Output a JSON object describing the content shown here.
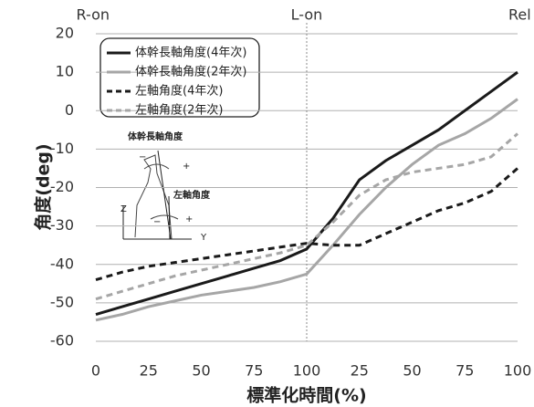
{
  "chart_data": {
    "type": "line",
    "ylabel": "角度(deg)",
    "xlabel": "標準化時間(%)",
    "phases": [
      {
        "value": 0,
        "label": "R-on"
      },
      {
        "value": 100,
        "label": "L-on"
      },
      {
        "value": 200,
        "label": "Rel"
      }
    ],
    "x": [
      0,
      12.5,
      25,
      37.5,
      50,
      62.5,
      75,
      87.5,
      100,
      112.5,
      125,
      137.5,
      150,
      162.5,
      175,
      187.5,
      200
    ],
    "series": [
      {
        "name": "体幹長軸角度(4年次)",
        "color": "#1a1a1a",
        "dash": false,
        "values": [
          -53,
          -51,
          -49,
          -47,
          -45,
          -43,
          -41,
          -39,
          -36,
          -28,
          -18,
          -13,
          -9,
          -5,
          0,
          5,
          10
        ]
      },
      {
        "name": "体幹長軸角度(2年次)",
        "color": "#a6a6a6",
        "dash": false,
        "values": [
          -54.5,
          -53,
          -51,
          -49.5,
          -48,
          -47,
          -46,
          -44.5,
          -42.5,
          -35,
          -27,
          -20,
          -14,
          -9,
          -6,
          -2,
          3
        ]
      },
      {
        "name": "左軸角度(4年次)",
        "color": "#1a1a1a",
        "dash": true,
        "values": [
          -44,
          -42,
          -40.5,
          -39.5,
          -38.5,
          -37.5,
          -36.5,
          -35.5,
          -34.5,
          -35,
          -35,
          -32,
          -29,
          -26,
          -24,
          -21,
          -15
        ]
      },
      {
        "name": "左軸角度(2年次)",
        "color": "#a6a6a6",
        "dash": true,
        "values": [
          -49,
          -47,
          -45,
          -43,
          -41.5,
          -40,
          -38.5,
          -37,
          -35,
          -29,
          -22,
          -18,
          -16,
          -15,
          -14,
          -12,
          -6
        ]
      }
    ],
    "xlim": [
      0,
      200
    ],
    "xticks": [
      0,
      25,
      50,
      75,
      100,
      {
        "value": 125,
        "label": "25"
      },
      {
        "value": 150,
        "label": "50"
      },
      {
        "value": 175,
        "label": "75"
      },
      {
        "value": 200,
        "label": "100"
      }
    ],
    "ylim": [
      -60,
      20
    ],
    "yticks": [
      20,
      10,
      0,
      -10,
      -20,
      -30,
      -40,
      -50,
      -60
    ],
    "grid": true,
    "annotations": [
      "体幹長軸角度",
      "左軸角度",
      "Z",
      "Y",
      "−",
      "+",
      "−",
      "+"
    ]
  }
}
